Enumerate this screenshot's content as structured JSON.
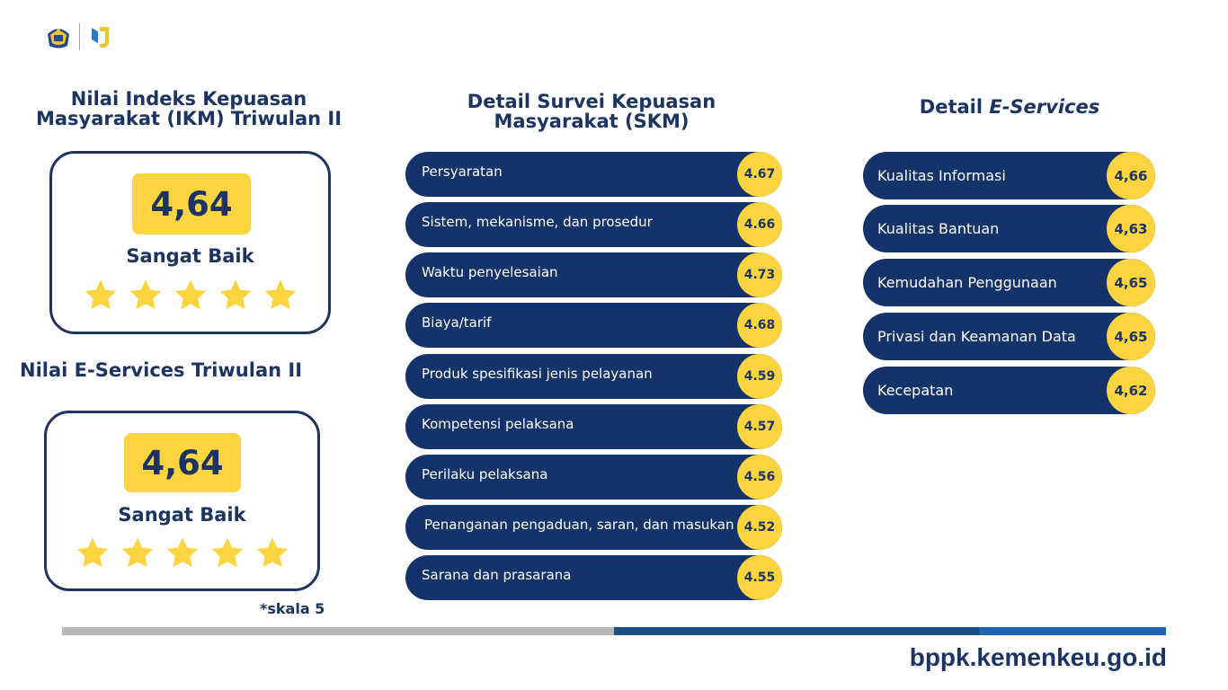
{
  "left": {
    "ikm_title": "Nilai Indeks Kepuasan Masyarakat (IKM) Triwulan II",
    "ikm_score": "4,64",
    "ikm_label": "Sangat Baik",
    "ikm_stars": 5,
    "es_title": "Nilai E-Services Triwulan II",
    "es_score": "4,64",
    "es_label": "Sangat Baik",
    "es_stars": 5,
    "scale_note": "*skala 5"
  },
  "skm": {
    "title": "Detail Survei Kepuasan Masyarakat (SKM)",
    "items": [
      {
        "label": "Persyaratan",
        "value": "4.67"
      },
      {
        "label": "Sistem, mekanisme, dan prosedur",
        "value": "4.66"
      },
      {
        "label": "Waktu penyelesaian",
        "value": "4.73"
      },
      {
        "label": "Biaya/tarif",
        "value": "4.68"
      },
      {
        "label": "Produk spesifikasi jenis pelayanan",
        "value": "4.59"
      },
      {
        "label": "Kompetensi pelaksana",
        "value": "4.57"
      },
      {
        "label": "Perilaku pelaksana",
        "value": "4.56"
      },
      {
        "label": "Penanganan pengaduan, saran, dan masukan",
        "value": "4.52"
      },
      {
        "label": "Sarana dan prasarana",
        "value": "4.55"
      }
    ]
  },
  "eservices": {
    "title_prefix": "Detail",
    "title_em": "E-Services",
    "items": [
      {
        "label": "Kualitas Informasi",
        "value": "4,66"
      },
      {
        "label": "Kualitas Bantuan",
        "value": "4,63"
      },
      {
        "label": "Kemudahan Penggunaan",
        "value": "4,65"
      },
      {
        "label": "Privasi dan Keamanan Data",
        "value": "4,65"
      },
      {
        "label": "Kecepatan",
        "value": "4,62"
      }
    ]
  },
  "footer": {
    "url": "bppk.kemenkeu.go.id"
  },
  "colors": {
    "navy": "#14336a",
    "yellow": "#fcd440",
    "title": "#1c3461"
  }
}
